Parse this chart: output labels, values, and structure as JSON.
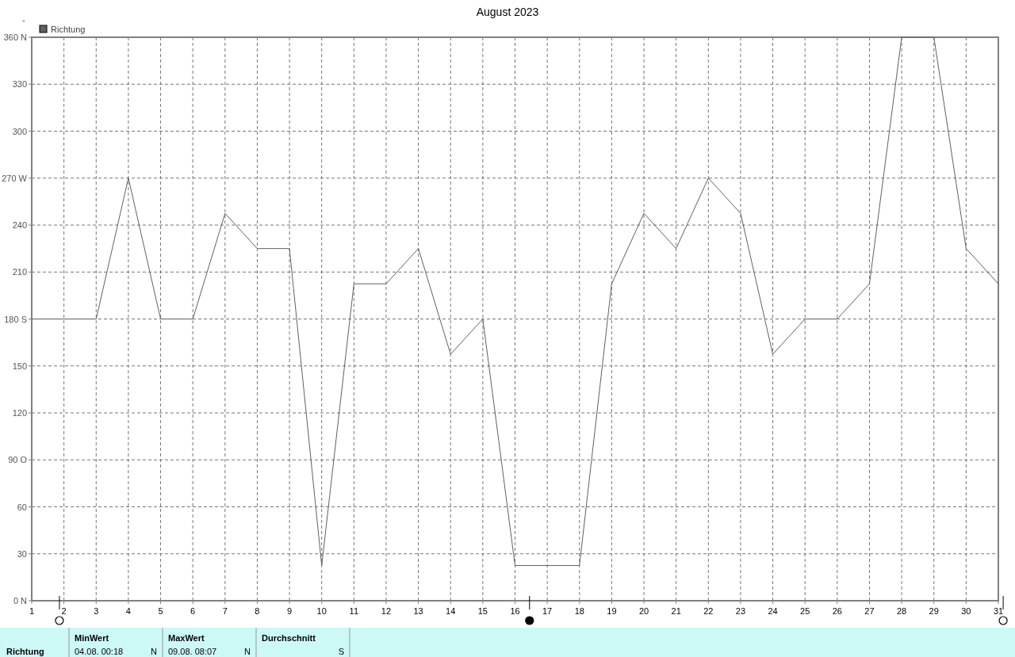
{
  "chart_data": {
    "type": "line",
    "title": "August 2023",
    "x": [
      1,
      2,
      3,
      4,
      5,
      6,
      7,
      8,
      9,
      10,
      11,
      12,
      13,
      14,
      15,
      16,
      17,
      18,
      19,
      20,
      21,
      22,
      23,
      24,
      25,
      26,
      27,
      28,
      29,
      30,
      31
    ],
    "series": [
      {
        "name": "Richtung",
        "color": "#606060",
        "values": [
          180,
          180,
          180,
          270,
          180,
          180,
          247.5,
          225,
          225,
          22.5,
          202.5,
          202.5,
          225,
          157.5,
          180,
          22.5,
          22.5,
          22.5,
          202.5,
          247.5,
          225,
          270,
          247.5,
          157.5,
          180,
          180,
          202.5,
          360,
          360,
          225,
          202.5
        ]
      }
    ],
    "xlim": [
      1,
      31
    ],
    "xticks": [
      1,
      2,
      3,
      4,
      5,
      6,
      7,
      8,
      9,
      10,
      11,
      12,
      13,
      14,
      15,
      16,
      17,
      18,
      19,
      20,
      21,
      22,
      23,
      24,
      25,
      26,
      27,
      28,
      29,
      30,
      31
    ],
    "ylim": [
      0,
      360
    ],
    "yticks": [
      {
        "value": 0,
        "label": "0  N"
      },
      30,
      60,
      {
        "value": 90,
        "label": "90  O"
      },
      120,
      150,
      {
        "value": 180,
        "label": "180 S"
      },
      210,
      240,
      {
        "value": 270,
        "label": "270 W"
      },
      300,
      330,
      {
        "value": 360,
        "label": "360 N"
      }
    ],
    "grid": true,
    "legend": "top left",
    "marker": "none",
    "line_style": "solid",
    "annotations": [
      "°",
      "Richtung",
      "MinWert",
      "04.08.  00:18",
      "N",
      "MaxWert",
      "09.08.  08:07",
      "N",
      "Durchschnitt",
      "S"
    ]
  }
}
